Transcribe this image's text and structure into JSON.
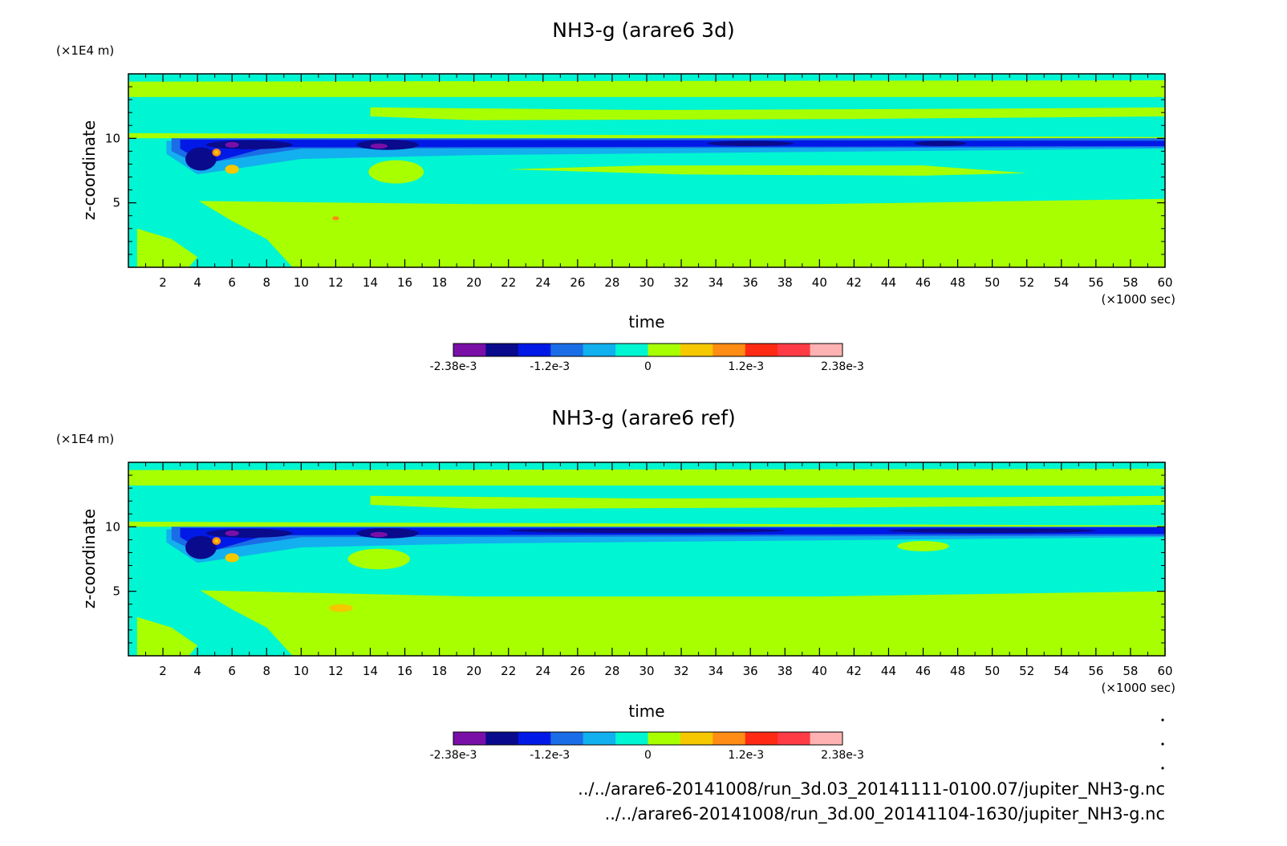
{
  "colors": {
    "levels": [
      "#7a0fa8",
      "#0a0a8c",
      "#0019e6",
      "#1a6de6",
      "#12b0ee",
      "#00f5d2",
      "#a8ff00",
      "#f5c800",
      "#ff8c14",
      "#ff2a14",
      "#ff3c46",
      "#ffb2b2"
    ]
  },
  "chart_data": [
    {
      "type": "heatmap",
      "title": "NH3-g (arare6 3d)",
      "xlabel": "time",
      "xunit": "(×1000 sec)",
      "ylabel": "z-coordinate",
      "yunit": "(×1E4 m)",
      "xlim": [
        0,
        60
      ],
      "ylim": [
        0,
        15
      ],
      "xticks": [
        "2",
        "4",
        "6",
        "8",
        "10",
        "12",
        "14",
        "16",
        "18",
        "20",
        "22",
        "24",
        "26",
        "28",
        "30",
        "32",
        "34",
        "36",
        "38",
        "40",
        "42",
        "44",
        "46",
        "48",
        "50",
        "52",
        "54",
        "56",
        "58",
        "60"
      ],
      "yticks": [
        "5",
        "10"
      ],
      "colorbar": {
        "range": [
          -0.00238,
          0.00238
        ],
        "labels": [
          "-2.38e-3",
          "-1.2e-3",
          "0",
          "1.2e-3",
          "2.38e-3"
        ]
      }
    },
    {
      "type": "heatmap",
      "title": "NH3-g (arare6 ref)",
      "xlabel": "time",
      "xunit": "(×1000 sec)",
      "ylabel": "z-coordinate",
      "yunit": "(×1E4 m)",
      "xlim": [
        0,
        60
      ],
      "ylim": [
        0,
        15
      ],
      "xticks": [
        "2",
        "4",
        "6",
        "8",
        "10",
        "12",
        "14",
        "16",
        "18",
        "20",
        "22",
        "24",
        "26",
        "28",
        "30",
        "32",
        "34",
        "36",
        "38",
        "40",
        "42",
        "44",
        "46",
        "48",
        "50",
        "52",
        "54",
        "56",
        "58",
        "60"
      ],
      "yticks": [
        "5",
        "10"
      ],
      "colorbar": {
        "range": [
          -0.00238,
          0.00238
        ],
        "labels": [
          "-2.38e-3",
          "-1.2e-3",
          "0",
          "1.2e-3",
          "2.38e-3"
        ]
      }
    }
  ],
  "footer": {
    "file_3d": "../../arare6-20141008/run_3d.03_20141111-0100.07/jupiter_NH3-g.nc",
    "file_ref": "../../arare6-20141008/run_3d.00_20141104-1630/jupiter_NH3-g.nc"
  }
}
